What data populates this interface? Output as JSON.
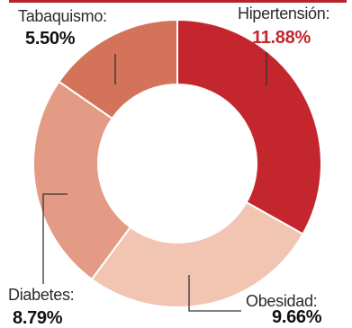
{
  "chart_data": {
    "type": "donut",
    "slices": [
      {
        "label": "Hipertensión:",
        "value": "11.88%",
        "share": 11.88,
        "color": "#c4262e"
      },
      {
        "label": "Obesidad:",
        "value": "9.66%",
        "share": 9.66,
        "color": "#f2c4b2"
      },
      {
        "label": "Diabetes:",
        "value": "8.79%",
        "share": 8.79,
        "color": "#e39b85"
      },
      {
        "label": "Tabaquismo:",
        "value": "5.50%",
        "share": 5.5,
        "color": "#d2735a"
      }
    ],
    "start_angle": 0,
    "direction": "clockwise"
  },
  "colors": {
    "header_sliver": "#b8232b",
    "slice_border": "#ffffff",
    "leader_line": "#333333",
    "value_highlight": "#c4262e"
  }
}
